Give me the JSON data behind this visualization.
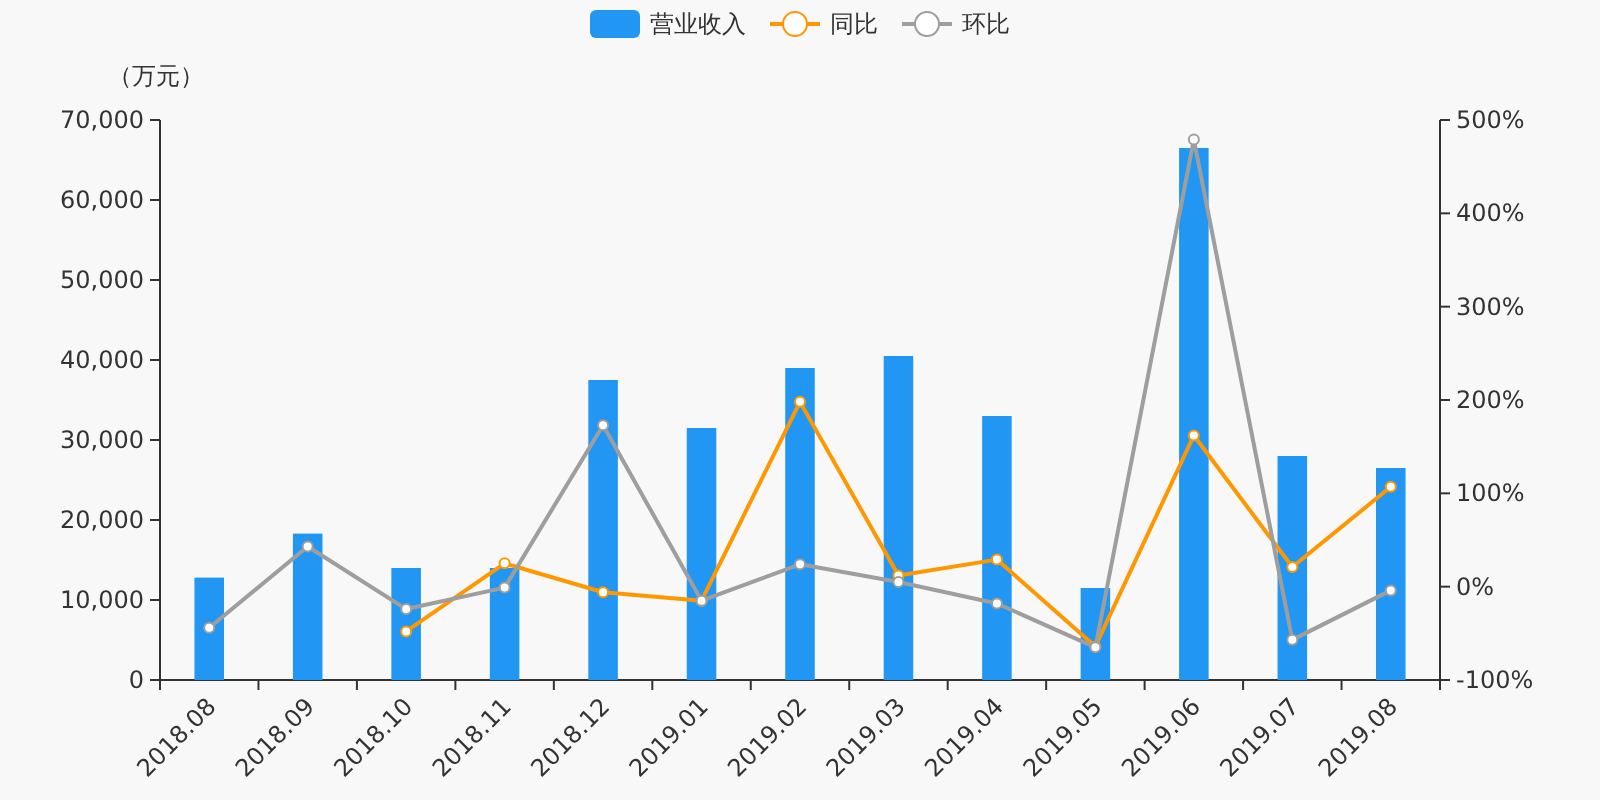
{
  "chart_data": {
    "type": "bar",
    "ylabel": "（万元）",
    "categories": [
      "2018.08",
      "2018.09",
      "2018.10",
      "2018.11",
      "2018.12",
      "2019.01",
      "2019.02",
      "2019.03",
      "2019.04",
      "2019.05",
      "2019.06",
      "2019.07",
      "2019.08"
    ],
    "series": [
      {
        "name": "营业收入",
        "color": "#2196f3",
        "values": [
          12800,
          18300,
          14000,
          14000,
          37500,
          31500,
          39000,
          40500,
          33000,
          11500,
          66500,
          28000,
          26500
        ]
      },
      {
        "name": "同比",
        "type": "line",
        "axis": "y2",
        "color": "#ff9800",
        "marker": "circle",
        "values": [
          null,
          null,
          -48,
          25,
          -6,
          -15,
          198,
          12,
          29,
          -64,
          162,
          21,
          107
        ]
      },
      {
        "name": "环比",
        "type": "line",
        "axis": "y2",
        "color": "#9e9e9e",
        "marker": "circle",
        "values": [
          -44,
          43,
          -24,
          -1,
          173,
          -15,
          24,
          5,
          -18,
          -65,
          479,
          -57,
          -4
        ]
      }
    ],
    "ylim": [
      0,
      70000
    ],
    "yticks": [
      {
        "value": 0,
        "label": "0"
      },
      {
        "value": 10000,
        "label": "10,000"
      },
      {
        "value": 20000,
        "label": "20,000"
      },
      {
        "value": 30000,
        "label": "30,000"
      },
      {
        "value": 40000,
        "label": "40,000"
      },
      {
        "value": 50000,
        "label": "50,000"
      },
      {
        "value": 60000,
        "label": "60,000"
      },
      {
        "value": 70000,
        "label": "70,000"
      }
    ],
    "y2lim": [
      -100,
      500
    ],
    "y2ticks": [
      {
        "value": -100,
        "label": "-100%"
      },
      {
        "value": 0,
        "label": "0%"
      },
      {
        "value": 100,
        "label": "100%"
      },
      {
        "value": 200,
        "label": "200%"
      },
      {
        "value": 300,
        "label": "300%"
      },
      {
        "value": 400,
        "label": "400%"
      },
      {
        "value": 500,
        "label": "500%"
      }
    ],
    "legend": "top",
    "grid": false
  }
}
